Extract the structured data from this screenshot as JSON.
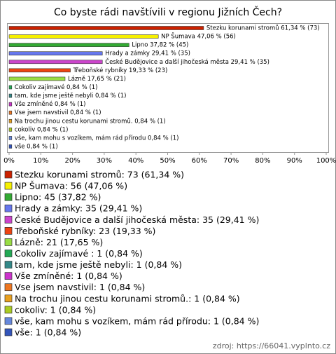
{
  "chart_data": {
    "type": "hbar",
    "title": "Co byste rádi navštívili v regionu Jižních Čech?",
    "values": [
      61.34,
      47.06,
      37.82,
      29.41,
      29.41,
      19.33,
      17.65,
      0.84,
      0.84,
      0.84,
      0.84,
      0.84,
      0.84,
      0.84,
      0.84
    ],
    "value_labels": [
      "Stezku korunami stromů 61,34 % (73)",
      "NP Šumava 47,06 % (56)",
      "Lipno 37,82 % (45)",
      "Hrady a zámky 29,41 % (35)",
      "České Budějovice a další jihočeská města 29,41 % (35)",
      "Třeboňské rybníky 19,33 % (23)",
      "Lázně 17,65 % (21)",
      "Cokoliv zajímavé  0,84 % (1)",
      "tam, kde jsme ještě nebyli 0,84 % (1)",
      "Vše zmíněné 0,84 % (1)",
      "Vse jsem navstivil 0,84 % (1)",
      "Na trochu jinou cestu korunami stromů. 0,84 % (1)",
      "cokoliv 0,84 % (1)",
      "vše, kam mohu s vozíkem, mám rád přírodu 0,84 % (1)",
      "vše 0,84 % (1)"
    ],
    "legend_labels": [
      "Stezku korunami stromů: 73 (61,34 %)",
      "NP Šumava: 56 (47,06 %)",
      "Lipno: 45 (37,82 %)",
      "Hrady a zámky: 35 (29,41 %)",
      "České Budějovice a další jihočeská města: 35 (29,41 %)",
      "Třeboňské rybníky: 23 (19,33 %)",
      "Lázně: 21 (17,65 %)",
      "Cokoliv zajímavé : 1 (0,84 %)",
      "tam, kde jsme ještě nebyli: 1 (0,84 %)",
      "Vše zmíněné: 1 (0,84 %)",
      "Vse jsem navstivil: 1 (0,84 %)",
      "Na trochu jinou cestu korunami stromů.: 1 (0,84 %)",
      "cokoliv: 1 (0,84 %)",
      "vše, kam mohu s vozíkem, mám rád přírodu: 1 (0,84 %)",
      "vše: 1 (0,84 %)"
    ],
    "colors": [
      "#cc2200",
      "#f6f000",
      "#33aa33",
      "#6677ee",
      "#cc44cc",
      "#ee4411",
      "#99dd44",
      "#22aa55",
      "#338888",
      "#cc33cc",
      "#ee7722",
      "#e8a020",
      "#aacc22",
      "#6688dd",
      "#3355bb"
    ],
    "xlim": [
      0,
      100
    ],
    "xticks": [
      {
        "value": 0,
        "label": "0%"
      },
      {
        "value": 10,
        "label": "10%"
      },
      {
        "value": 20,
        "label": "20%"
      },
      {
        "value": 30,
        "label": "30%"
      },
      {
        "value": 40,
        "label": "40%"
      },
      {
        "value": 50,
        "label": "50%"
      },
      {
        "value": 60,
        "label": "60%"
      },
      {
        "value": 70,
        "label": "70%"
      },
      {
        "value": 80,
        "label": "80%"
      },
      {
        "value": 90,
        "label": "90%"
      },
      {
        "value": 100,
        "label": "100%"
      }
    ],
    "source": "zdroj: https://66041.vyplnto.cz"
  }
}
